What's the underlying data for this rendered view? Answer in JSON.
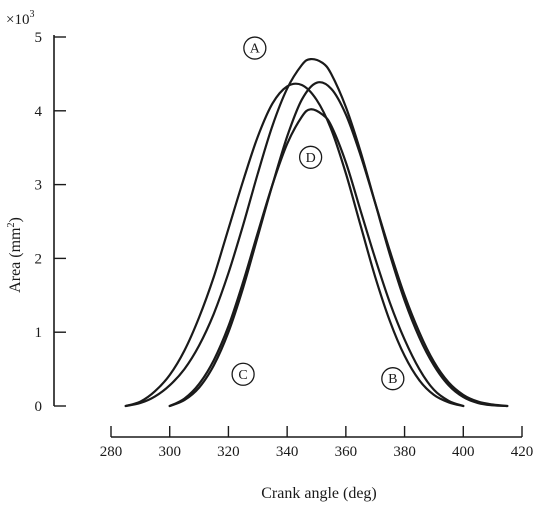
{
  "chart_data": {
    "type": "line",
    "title": "",
    "xlabel": "Crank angle (deg)",
    "ylabel_prefix": "Area (mm",
    "ylabel_sup": "2",
    "ylabel_suffix": ")",
    "y_multiplier": "×10",
    "y_multiplier_exp": "3",
    "xlim": [
      280,
      420
    ],
    "ylim": [
      0,
      5
    ],
    "x_ticks": [
      280,
      300,
      320,
      340,
      360,
      380,
      400,
      420
    ],
    "y_ticks": [
      0,
      1,
      2,
      3,
      4,
      5
    ],
    "grid": false,
    "legend": "none",
    "series": [
      {
        "name": "A",
        "x": [
          285,
          290,
          295,
          300,
          305,
          310,
          315,
          320,
          325,
          330,
          335,
          340,
          345,
          348,
          352,
          355,
          360,
          365,
          370,
          375,
          380,
          385,
          390,
          395,
          400,
          405,
          410,
          415
        ],
        "y": [
          0,
          0.04,
          0.13,
          0.28,
          0.5,
          0.82,
          1.25,
          1.8,
          2.45,
          3.15,
          3.8,
          4.3,
          4.62,
          4.7,
          4.65,
          4.5,
          4.05,
          3.45,
          2.75,
          2.05,
          1.43,
          0.93,
          0.55,
          0.28,
          0.12,
          0.04,
          0.01,
          0
        ]
      },
      {
        "name": "B",
        "x": [
          300,
          305,
          310,
          315,
          320,
          325,
          330,
          335,
          340,
          345,
          350,
          355,
          360,
          365,
          370,
          375,
          380,
          385,
          390,
          395,
          400,
          405,
          410,
          415
        ],
        "y": [
          0,
          0.08,
          0.25,
          0.55,
          1.0,
          1.6,
          2.3,
          3.0,
          3.65,
          4.15,
          4.38,
          4.3,
          3.95,
          3.4,
          2.75,
          2.1,
          1.5,
          1.0,
          0.6,
          0.32,
          0.15,
          0.06,
          0.02,
          0
        ]
      },
      {
        "name": "C",
        "x": [
          285,
          290,
          295,
          300,
          305,
          310,
          315,
          320,
          325,
          330,
          335,
          340,
          345,
          350,
          355,
          360,
          365,
          370,
          375,
          380,
          385,
          390,
          395,
          400
        ],
        "y": [
          0,
          0.06,
          0.2,
          0.42,
          0.75,
          1.2,
          1.75,
          2.4,
          3.05,
          3.65,
          4.1,
          4.33,
          4.35,
          4.15,
          3.75,
          3.15,
          2.45,
          1.75,
          1.15,
          0.68,
          0.35,
          0.15,
          0.05,
          0
        ]
      },
      {
        "name": "D",
        "x": [
          300,
          305,
          310,
          315,
          320,
          325,
          330,
          335,
          340,
          345,
          348,
          352,
          355,
          360,
          365,
          370,
          375,
          380,
          385,
          390,
          395,
          400
        ],
        "y": [
          0,
          0.1,
          0.3,
          0.62,
          1.08,
          1.68,
          2.35,
          3.0,
          3.55,
          3.92,
          4.02,
          3.95,
          3.8,
          3.3,
          2.65,
          2.0,
          1.4,
          0.9,
          0.5,
          0.22,
          0.07,
          0
        ]
      }
    ],
    "annotations": [
      {
        "label": "A",
        "x": 329,
        "y": 4.85
      },
      {
        "label": "D",
        "x": 348,
        "y": 3.37
      },
      {
        "label": "C",
        "x": 325,
        "y": 0.43
      },
      {
        "label": "B",
        "x": 376,
        "y": 0.37
      }
    ]
  }
}
